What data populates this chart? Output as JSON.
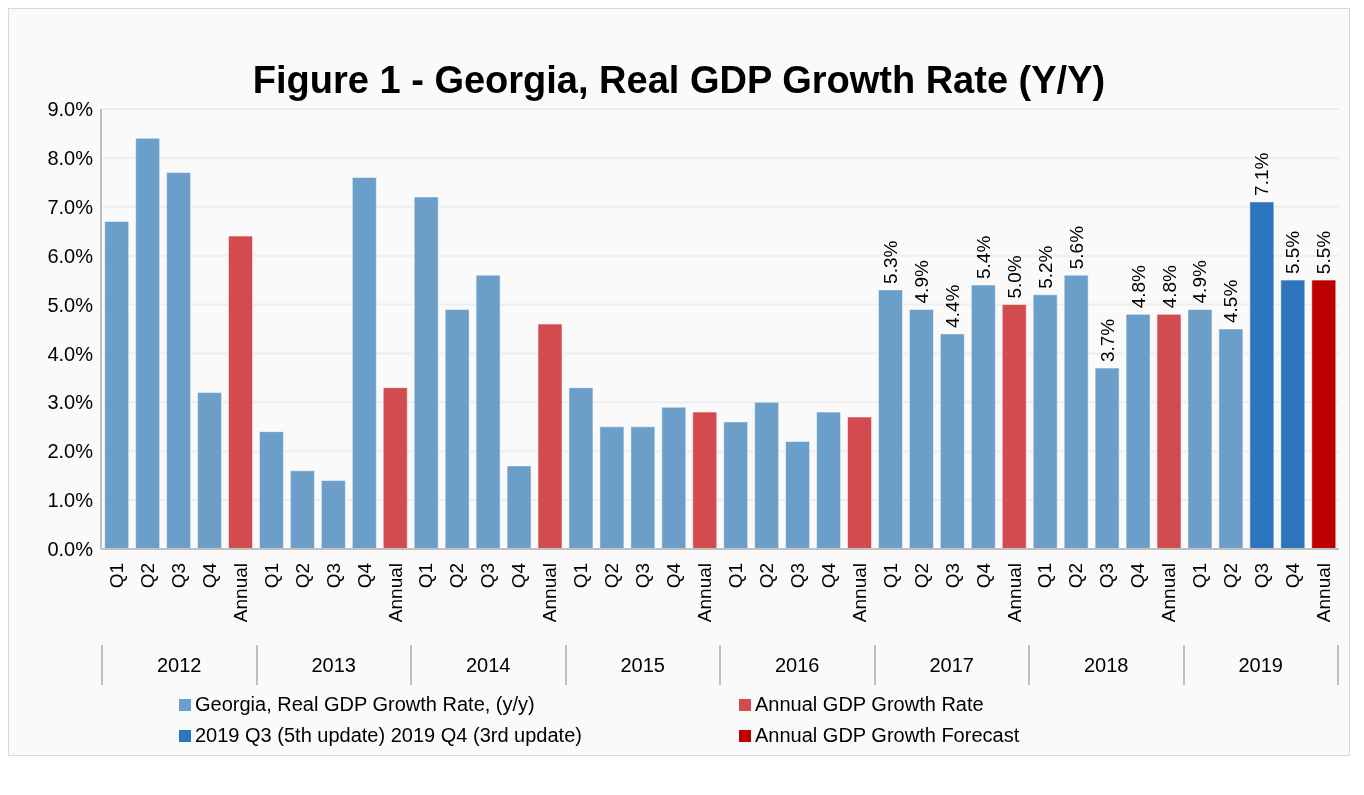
{
  "chart_data": {
    "type": "bar",
    "title": "Figure 1 - Georgia, Real GDP Growth Rate (Y/Y)",
    "categories": [
      "Q1",
      "Q2",
      "Q3",
      "Q4",
      "Annual",
      "Q1",
      "Q2",
      "Q3",
      "Q4",
      "Annual",
      "Q1",
      "Q2",
      "Q3",
      "Q4",
      "Annual",
      "Q1",
      "Q2",
      "Q3",
      "Q4",
      "Annual",
      "Q1",
      "Q2",
      "Q3",
      "Q4",
      "Annual",
      "Q1",
      "Q2",
      "Q3",
      "Q4",
      "Annual",
      "Q1",
      "Q2",
      "Q3",
      "Q4",
      "Annual",
      "Q1",
      "Q2",
      "Q3",
      "Q4",
      "Annual"
    ],
    "annotations": [
      "2012",
      "2013",
      "2014",
      "2015",
      "2016",
      "2017",
      "2018",
      "2019"
    ],
    "stacked": true,
    "series": [
      {
        "name": "Georgia, Real GDP Growth Rate, (y/y)",
        "color": "#6b9ec8",
        "values": [
          6.7,
          8.4,
          7.7,
          3.2,
          null,
          2.4,
          1.6,
          1.4,
          7.6,
          null,
          7.2,
          4.9,
          5.6,
          1.7,
          null,
          3.3,
          2.5,
          2.5,
          2.9,
          null,
          2.6,
          3.0,
          2.2,
          2.8,
          null,
          5.3,
          4.9,
          4.4,
          5.4,
          null,
          5.2,
          5.6,
          3.7,
          4.8,
          null,
          4.9,
          4.5,
          null,
          null,
          null
        ],
        "value_labels": [
          null,
          null,
          null,
          null,
          null,
          null,
          null,
          null,
          null,
          null,
          null,
          null,
          null,
          null,
          null,
          null,
          null,
          null,
          null,
          null,
          null,
          null,
          null,
          null,
          null,
          "5.3%",
          "4.9%",
          "4.4%",
          "5.4%",
          null,
          "5.2%",
          "5.6%",
          "3.7%",
          "4.8%",
          null,
          "4.9%",
          "4.5%",
          null,
          null,
          null
        ]
      },
      {
        "name": "Annual GDP Growth Rate",
        "color": "#d24b4e",
        "values": [
          null,
          null,
          null,
          null,
          6.4,
          null,
          null,
          null,
          null,
          3.3,
          null,
          null,
          null,
          null,
          4.6,
          null,
          null,
          null,
          null,
          2.8,
          null,
          null,
          null,
          null,
          2.7,
          null,
          null,
          null,
          null,
          5.0,
          null,
          null,
          null,
          null,
          4.8,
          null,
          null,
          null,
          null,
          null
        ],
        "value_labels": [
          null,
          null,
          null,
          null,
          null,
          null,
          null,
          null,
          null,
          null,
          null,
          null,
          null,
          null,
          null,
          null,
          null,
          null,
          null,
          null,
          null,
          null,
          null,
          null,
          null,
          null,
          null,
          null,
          null,
          "5.0%",
          null,
          null,
          null,
          null,
          "4.8%",
          null,
          null,
          null,
          null,
          null
        ]
      },
      {
        "name": "2019 Q3 (5th update) 2019 Q4 (3rd update)",
        "color": "#2e75c0",
        "values": [
          null,
          null,
          null,
          null,
          null,
          null,
          null,
          null,
          null,
          null,
          null,
          null,
          null,
          null,
          null,
          null,
          null,
          null,
          null,
          null,
          null,
          null,
          null,
          null,
          null,
          null,
          null,
          null,
          null,
          null,
          null,
          null,
          null,
          null,
          null,
          null,
          null,
          7.1,
          5.5,
          null
        ],
        "value_labels": [
          null,
          null,
          null,
          null,
          null,
          null,
          null,
          null,
          null,
          null,
          null,
          null,
          null,
          null,
          null,
          null,
          null,
          null,
          null,
          null,
          null,
          null,
          null,
          null,
          null,
          null,
          null,
          null,
          null,
          null,
          null,
          null,
          null,
          null,
          null,
          null,
          null,
          "7.1%",
          "5.5%",
          null
        ]
      },
      {
        "name": "Annual GDP Growth Forecast",
        "color": "#c00000",
        "values": [
          null,
          null,
          null,
          null,
          null,
          null,
          null,
          null,
          null,
          null,
          null,
          null,
          null,
          null,
          null,
          null,
          null,
          null,
          null,
          null,
          null,
          null,
          null,
          null,
          null,
          null,
          null,
          null,
          null,
          null,
          null,
          null,
          null,
          null,
          null,
          null,
          null,
          null,
          null,
          5.5
        ],
        "value_labels": [
          null,
          null,
          null,
          null,
          null,
          null,
          null,
          null,
          null,
          null,
          null,
          null,
          null,
          null,
          null,
          null,
          null,
          null,
          null,
          null,
          null,
          null,
          null,
          null,
          null,
          null,
          null,
          null,
          null,
          null,
          null,
          null,
          null,
          null,
          null,
          null,
          null,
          null,
          null,
          "5.5%"
        ]
      }
    ],
    "ylim": [
      0,
      9
    ],
    "yticks": [
      {
        "value": 0,
        "label": "0.0%"
      },
      {
        "value": 1,
        "label": "1.0%"
      },
      {
        "value": 2,
        "label": "2.0%"
      },
      {
        "value": 3,
        "label": "3.0%"
      },
      {
        "value": 4,
        "label": "4.0%"
      },
      {
        "value": 5,
        "label": "5.0%"
      },
      {
        "value": 6,
        "label": "6.0%"
      },
      {
        "value": 7,
        "label": "7.0%"
      },
      {
        "value": 8,
        "label": "8.0%"
      },
      {
        "value": 9,
        "label": "9.0%"
      }
    ],
    "grid": "y",
    "legend": "bottom"
  }
}
